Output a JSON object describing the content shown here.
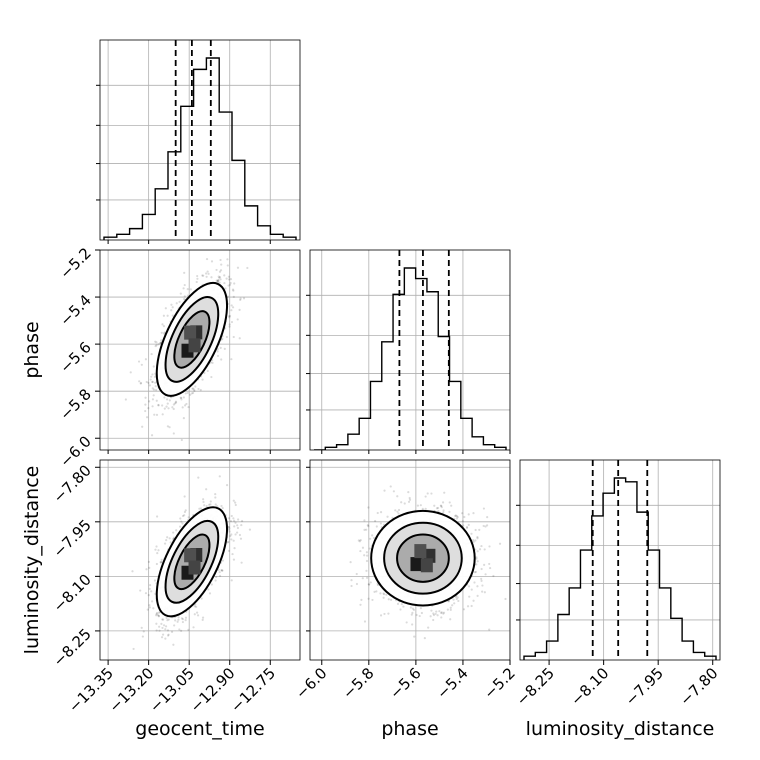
{
  "chart_data": {
    "type": "corner",
    "parameters": [
      {
        "name": "geocent_time",
        "label": "geocent_time",
        "range": [
          -13.38,
          -12.64
        ],
        "ticks": [
          -13.35,
          -13.2,
          -13.05,
          -12.9,
          -12.75
        ],
        "tick_labels": [
          "−13.35",
          "−13.20",
          "−13.05",
          "−12.90",
          "−12.75"
        ],
        "quantiles": [
          -13.1,
          -13.04,
          -12.97
        ],
        "hist_values": [
          1,
          2,
          4,
          9,
          18,
          31,
          47,
          60,
          64,
          45,
          28,
          12,
          5,
          2,
          1
        ]
      },
      {
        "name": "phase",
        "label": "phase",
        "range": [
          -6.05,
          -5.2
        ],
        "ticks": [
          -6.0,
          -5.8,
          -5.6,
          -5.4,
          -5.2
        ],
        "tick_labels": [
          "−6.0",
          "−5.8",
          "−5.6",
          "−5.4",
          "−5.2"
        ],
        "quantiles": [
          -5.67,
          -5.57,
          -5.46
        ],
        "hist_values": [
          0,
          1,
          2,
          6,
          12,
          26,
          41,
          59,
          69,
          65,
          60,
          43,
          26,
          12,
          5,
          2,
          1
        ]
      },
      {
        "name": "luminosity_distance",
        "label": "luminosity_distance",
        "range": [
          -8.33,
          -7.78
        ],
        "ticks": [
          -8.25,
          -8.1,
          -7.95,
          -7.8
        ],
        "tick_labels": [
          "−8.25",
          "−8.10",
          "−7.95",
          "−7.80"
        ],
        "quantiles": [
          -8.13,
          -8.06,
          -7.98
        ],
        "hist_values": [
          1,
          2,
          5,
          12,
          19,
          29,
          38,
          44,
          48,
          47,
          39,
          29,
          19,
          11,
          5,
          2,
          1
        ]
      }
    ],
    "pair_plots": [
      {
        "x": "geocent_time",
        "y": "phase",
        "center": [
          -13.04,
          -5.58
        ],
        "sigma": [
          0.065,
          0.12
        ],
        "rho": 0.6
      },
      {
        "x": "geocent_time",
        "y": "luminosity_distance",
        "center": [
          -13.04,
          -8.06
        ],
        "sigma": [
          0.065,
          0.075
        ],
        "rho": 0.6
      },
      {
        "x": "phase",
        "y": "luminosity_distance",
        "center": [
          -5.57,
          -8.05
        ],
        "sigma": [
          0.11,
          0.065
        ],
        "rho": 0.0
      }
    ],
    "contour_levels_sigma": [
      1,
      1.5,
      2
    ],
    "quantile_style": "dashed",
    "grid": true
  }
}
